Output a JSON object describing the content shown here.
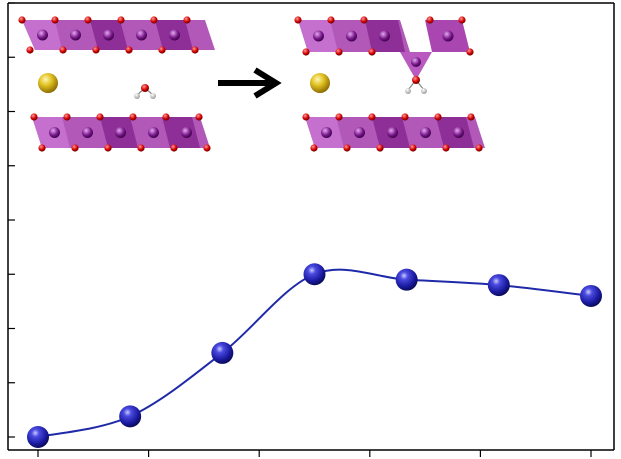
{
  "chart_data": {
    "type": "line",
    "title": "",
    "xlabel": "",
    "ylabel": "",
    "x": [
      0,
      1,
      2,
      3,
      4,
      5,
      6
    ],
    "series": [
      {
        "values": [
          0.0,
          0.38,
          1.55,
          3.0,
          2.9,
          2.8,
          2.6
        ]
      }
    ],
    "xlim": [
      0,
      6
    ],
    "ylim": [
      0,
      8
    ],
    "grid": false,
    "legend": "none",
    "x_tick_labels": [],
    "y_tick_labels": [],
    "colors": {
      "line": "#1f2aa8",
      "marker": "#1a1aa0",
      "marker_highlight": "#8a8cf0",
      "axis": "#000000"
    }
  },
  "inset": {
    "description_free": true,
    "arrow_color": "#000000",
    "octahedron_color": "#a946b0",
    "metal_atom_color": "#7a1a8c",
    "oxygen_color": "#d40000",
    "cation_color": "#e0c020",
    "hydrogen_color": "#e6e6e6"
  }
}
